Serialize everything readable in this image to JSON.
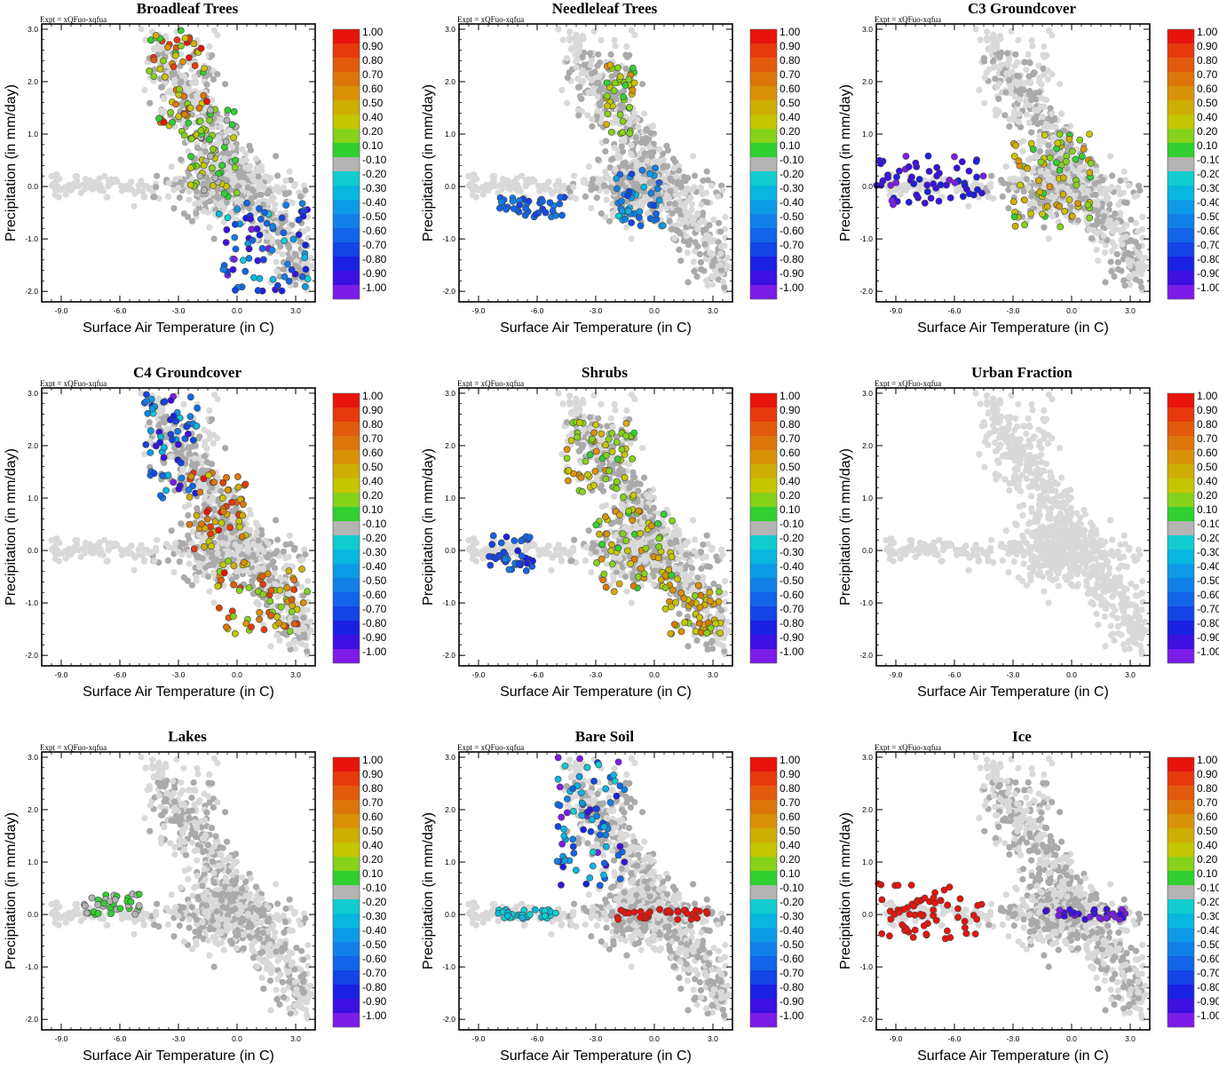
{
  "figure": {
    "experiment": "Expt = xQFuo-xqfua",
    "xlabel": "Surface Air Temperature (in C)",
    "ylabel": "Precipitation (in mm/day)",
    "xticks": [
      "-9.0",
      "-6.0",
      "-3.0",
      "0.0",
      "3.0"
    ],
    "yticks": [
      "3.0",
      "2.0",
      "1.0",
      "0.0",
      "-1.0",
      "-2.0"
    ],
    "colorbar": {
      "labels": [
        "1.00",
        "0.90",
        "0.80",
        "0.70",
        "0.60",
        "0.50",
        "0.40",
        "0.20",
        "0.10",
        "-0.10",
        "-0.20",
        "-0.30",
        "-0.40",
        "-0.50",
        "-0.60",
        "-0.70",
        "-0.80",
        "-0.90",
        "-1.00"
      ],
      "colors": [
        "#e8140c",
        "#e63a0c",
        "#e25a0c",
        "#dd760a",
        "#d99208",
        "#cfae04",
        "#c6c600",
        "#86d21a",
        "#30d030",
        "#b4b4b4",
        "#10ccd0",
        "#08b6e0",
        "#0c9ae6",
        "#1080e8",
        "#1264e8",
        "#1444e6",
        "#1a20e2",
        "#3c10e0",
        "#7c1ce8"
      ]
    },
    "colors": {
      "background_points": "#d9d9d9",
      "neutral_points": "#aaaaaa"
    }
  },
  "chart_data": [
    {
      "type": "scatter",
      "title": "Broadleaf Trees",
      "xlim": [
        -10,
        4
      ],
      "ylim": [
        -2.2,
        3.1
      ],
      "colored_clusters": [
        {
          "x": [
            -4.5,
            -1.5
          ],
          "y": [
            0.9,
            3.0
          ],
          "value_range": [
            0.1,
            1.0
          ]
        },
        {
          "x": [
            -2.5,
            0.0
          ],
          "y": [
            -0.2,
            1.5
          ],
          "value_range": [
            -0.1,
            0.4
          ]
        },
        {
          "x": [
            -1.0,
            3.7
          ],
          "y": [
            -2.0,
            -0.3
          ],
          "value_range": [
            -1.0,
            -0.2
          ]
        }
      ]
    },
    {
      "type": "scatter",
      "title": "Needleleaf Trees",
      "xlim": [
        -10,
        4
      ],
      "ylim": [
        -2.2,
        3.1
      ],
      "colored_clusters": [
        {
          "x": [
            -2.5,
            -1.0
          ],
          "y": [
            1.0,
            2.4
          ],
          "value_range": [
            0.1,
            0.6
          ]
        },
        {
          "x": [
            -2.0,
            0.5
          ],
          "y": [
            -0.8,
            0.4
          ],
          "value_range": [
            -0.7,
            -0.2
          ]
        },
        {
          "x": [
            -8.0,
            -4.5
          ],
          "y": [
            -0.6,
            -0.2
          ],
          "value_range": [
            -0.7,
            -0.5
          ]
        }
      ]
    },
    {
      "type": "scatter",
      "title": "C3 Groundcover",
      "xlim": [
        -10,
        4
      ],
      "ylim": [
        -2.2,
        3.1
      ],
      "colored_clusters": [
        {
          "x": [
            -10.0,
            -4.5
          ],
          "y": [
            -0.4,
            0.6
          ],
          "value_range": [
            -1.0,
            -0.8
          ]
        },
        {
          "x": [
            -3.0,
            1.0
          ],
          "y": [
            -0.8,
            1.0
          ],
          "value_range": [
            0.1,
            0.6
          ]
        }
      ]
    },
    {
      "type": "scatter",
      "title": "C4 Groundcover",
      "xlim": [
        -10,
        4
      ],
      "ylim": [
        -2.2,
        3.1
      ],
      "colored_clusters": [
        {
          "x": [
            -4.8,
            -2.0
          ],
          "y": [
            1.0,
            3.0
          ],
          "value_range": [
            -1.0,
            -0.2
          ]
        },
        {
          "x": [
            -2.5,
            0.5
          ],
          "y": [
            0.0,
            1.5
          ],
          "value_range": [
            0.4,
            1.0
          ]
        },
        {
          "x": [
            -1.0,
            3.7
          ],
          "y": [
            -1.6,
            -0.2
          ],
          "value_range": [
            0.1,
            1.0
          ]
        }
      ]
    },
    {
      "type": "scatter",
      "title": "Shrubs",
      "xlim": [
        -10,
        4
      ],
      "ylim": [
        -2.2,
        3.1
      ],
      "colored_clusters": [
        {
          "x": [
            -4.5,
            -1.0
          ],
          "y": [
            1.0,
            2.5
          ],
          "value_range": [
            0.1,
            0.6
          ]
        },
        {
          "x": [
            -3.0,
            1.0
          ],
          "y": [
            -0.8,
            0.8
          ],
          "value_range": [
            0.1,
            0.7
          ]
        },
        {
          "x": [
            -8.5,
            -6.0
          ],
          "y": [
            -0.4,
            0.3
          ],
          "value_range": [
            -0.8,
            -0.5
          ]
        },
        {
          "x": [
            0.5,
            3.5
          ],
          "y": [
            -1.6,
            -0.5
          ],
          "value_range": [
            0.2,
            0.7
          ]
        }
      ]
    },
    {
      "type": "scatter",
      "title": "Urban Fraction",
      "xlim": [
        -10,
        4
      ],
      "ylim": [
        -2.2,
        3.1
      ],
      "colored_clusters": []
    },
    {
      "type": "scatter",
      "title": "Lakes",
      "xlim": [
        -10,
        4
      ],
      "ylim": [
        -2.2,
        3.1
      ],
      "colored_clusters": [
        {
          "x": [
            -8.0,
            -5.0
          ],
          "y": [
            0.0,
            0.4
          ],
          "value_range": [
            -0.1,
            0.1
          ]
        }
      ]
    },
    {
      "type": "scatter",
      "title": "Bare Soil",
      "xlim": [
        -10,
        4
      ],
      "ylim": [
        -2.2,
        3.1
      ],
      "colored_clusters": [
        {
          "x": [
            -5.0,
            -1.5
          ],
          "y": [
            0.5,
            3.0
          ],
          "value_range": [
            -1.0,
            -0.2
          ]
        },
        {
          "x": [
            -2.0,
            3.0
          ],
          "y": [
            -0.1,
            0.1
          ],
          "value_range": [
            1.0,
            1.0
          ]
        },
        {
          "x": [
            -8.0,
            -5.0
          ],
          "y": [
            -0.1,
            0.1
          ],
          "value_range": [
            -0.3,
            -0.2
          ]
        }
      ]
    },
    {
      "type": "scatter",
      "title": "Ice",
      "xlim": [
        -10,
        4
      ],
      "ylim": [
        -2.2,
        3.1
      ],
      "colored_clusters": [
        {
          "x": [
            -10.0,
            -4.5
          ],
          "y": [
            -0.5,
            0.6
          ],
          "value_range": [
            1.0,
            1.0
          ]
        },
        {
          "x": [
            -1.5,
            3.0
          ],
          "y": [
            -0.1,
            0.1
          ],
          "value_range": [
            -1.0,
            -0.9
          ]
        }
      ]
    }
  ]
}
